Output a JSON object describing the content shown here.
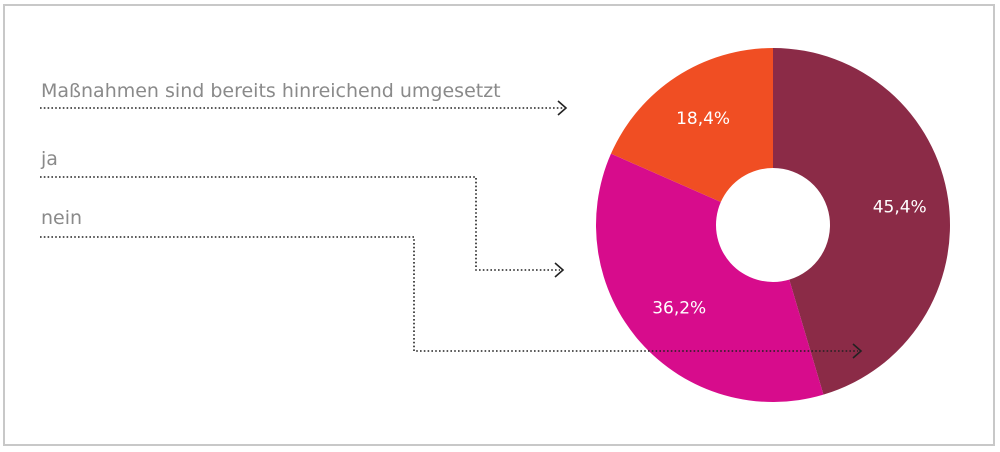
{
  "chart_data": {
    "type": "pie",
    "categories": [
      "Maßnahmen sind bereits hinreichend umgesetzt",
      "ja",
      "nein"
    ],
    "values": [
      18.4,
      36.2,
      45.4
    ],
    "value_labels": [
      "18,4%",
      "36,2%",
      "45,4%"
    ],
    "colors": [
      "#f04e23",
      "#d70c8c",
      "#8b2b47"
    ],
    "donut": true
  }
}
